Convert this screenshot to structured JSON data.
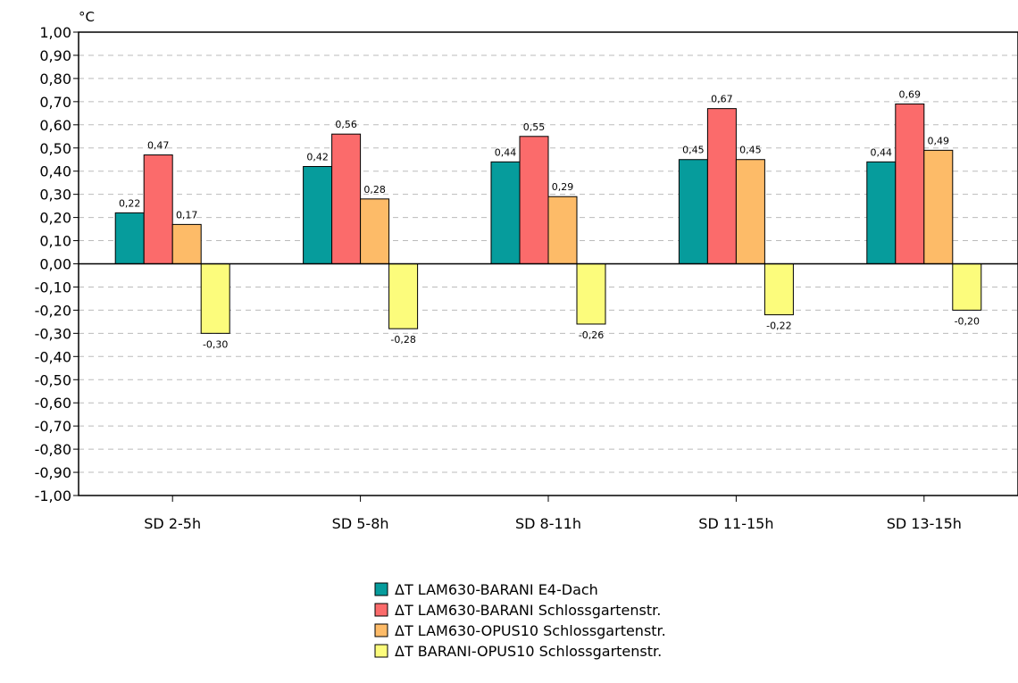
{
  "chart_data": {
    "type": "bar",
    "unit_label": "°C",
    "categories": [
      "SD 2-5h",
      "SD 5-8h",
      "SD 8-11h",
      "SD 11-15h",
      "SD 13-15h"
    ],
    "series": [
      {
        "name": "ΔT LAM630-BARANI  E4-Dach",
        "color": "#069c9c",
        "values": [
          0.22,
          0.42,
          0.44,
          0.45,
          0.44
        ],
        "labels": [
          "0,22",
          "0,42",
          "0,44",
          "0,45",
          "0,44"
        ]
      },
      {
        "name": "ΔT LAM630-BARANI  Schlossgartenstr.",
        "color": "#fb6b6b",
        "values": [
          0.47,
          0.56,
          0.55,
          0.67,
          0.69
        ],
        "labels": [
          "0,47",
          "0,56",
          "0,55",
          "0,67",
          "0,69"
        ]
      },
      {
        "name": "ΔT LAM630-OPUS10  Schlossgartenstr.",
        "color": "#fdbb68",
        "values": [
          0.17,
          0.28,
          0.29,
          0.45,
          0.49
        ],
        "labels": [
          "0,17",
          "0,28",
          "0,29",
          "0,45",
          "0,49"
        ]
      },
      {
        "name": "ΔT BARANI-OPUS10  Schlossgartenstr.",
        "color": "#fcfc7c",
        "values": [
          -0.3,
          -0.28,
          -0.26,
          -0.22,
          -0.2
        ],
        "labels": [
          "-0,30",
          "-0,28",
          "-0,26",
          "-0,22",
          "-0,20"
        ]
      }
    ],
    "ylim": [
      -1.0,
      1.0
    ],
    "yticks": [
      1.0,
      0.9,
      0.8,
      0.7,
      0.6,
      0.5,
      0.4,
      0.3,
      0.2,
      0.1,
      0.0,
      -0.1,
      -0.2,
      -0.3,
      -0.4,
      -0.5,
      -0.6,
      -0.7,
      -0.8,
      -0.9,
      -1.0
    ],
    "ytick_labels": [
      "1,00",
      "0,90",
      "0,80",
      "0,70",
      "0,60",
      "0,50",
      "0,40",
      "0,30",
      "0,20",
      "0,10",
      "0,00",
      "-0,10",
      "-0,20",
      "-0,30",
      "-0,40",
      "-0,50",
      "-0,60",
      "-0,70",
      "-0,80",
      "-0,90",
      "-1,00"
    ],
    "grid": true,
    "legend_position": "bottom-center"
  }
}
